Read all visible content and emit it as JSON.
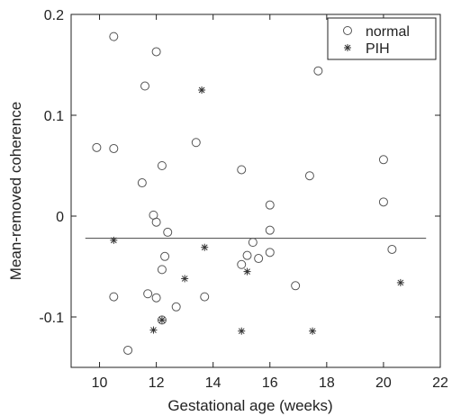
{
  "chart_data": {
    "type": "scatter",
    "title": "",
    "xlabel": "Gestational age (weeks)",
    "ylabel": "Mean-removed coherence",
    "xlim": [
      9,
      22
    ],
    "ylim": [
      -0.15,
      0.2
    ],
    "xticks": [
      10,
      12,
      14,
      16,
      18,
      20,
      22
    ],
    "yticks": [
      -0.1,
      0,
      0.1,
      0.2
    ],
    "xtick_labels": [
      "10",
      "12",
      "14",
      "16",
      "18",
      "20",
      "22"
    ],
    "ytick_labels": [
      "-0.1",
      "0",
      "0.1",
      "0.2"
    ],
    "grid": false,
    "legend_position": "top-right",
    "series": [
      {
        "name": "normal",
        "marker": "circle",
        "points": [
          {
            "x": 10.5,
            "y": 0.178
          },
          {
            "x": 12.0,
            "y": 0.163
          },
          {
            "x": 11.6,
            "y": 0.129
          },
          {
            "x": 17.7,
            "y": 0.144
          },
          {
            "x": 9.9,
            "y": 0.068
          },
          {
            "x": 10.5,
            "y": 0.067
          },
          {
            "x": 13.4,
            "y": 0.073
          },
          {
            "x": 12.2,
            "y": 0.05
          },
          {
            "x": 15.0,
            "y": 0.046
          },
          {
            "x": 20.0,
            "y": 0.056
          },
          {
            "x": 11.5,
            "y": 0.033
          },
          {
            "x": 17.4,
            "y": 0.04
          },
          {
            "x": 20.0,
            "y": 0.014
          },
          {
            "x": 16.0,
            "y": 0.011
          },
          {
            "x": 11.9,
            "y": 0.001
          },
          {
            "x": 12.0,
            "y": -0.006
          },
          {
            "x": 12.4,
            "y": -0.016
          },
          {
            "x": 16.0,
            "y": -0.014
          },
          {
            "x": 15.4,
            "y": -0.026
          },
          {
            "x": 20.3,
            "y": -0.033
          },
          {
            "x": 16.0,
            "y": -0.036
          },
          {
            "x": 15.2,
            "y": -0.039
          },
          {
            "x": 15.6,
            "y": -0.042
          },
          {
            "x": 12.3,
            "y": -0.04
          },
          {
            "x": 15.0,
            "y": -0.048
          },
          {
            "x": 12.2,
            "y": -0.053
          },
          {
            "x": 16.9,
            "y": -0.069
          },
          {
            "x": 10.5,
            "y": -0.08
          },
          {
            "x": 11.7,
            "y": -0.077
          },
          {
            "x": 12.0,
            "y": -0.081
          },
          {
            "x": 13.7,
            "y": -0.08
          },
          {
            "x": 12.7,
            "y": -0.09
          },
          {
            "x": 12.2,
            "y": -0.103
          },
          {
            "x": 11.0,
            "y": -0.133
          }
        ]
      },
      {
        "name": "PIH",
        "marker": "star",
        "points": [
          {
            "x": 13.6,
            "y": 0.125
          },
          {
            "x": 10.5,
            "y": -0.024
          },
          {
            "x": 13.7,
            "y": -0.031
          },
          {
            "x": 15.2,
            "y": -0.055
          },
          {
            "x": 13.0,
            "y": -0.062
          },
          {
            "x": 20.6,
            "y": -0.066
          },
          {
            "x": 12.2,
            "y": -0.103
          },
          {
            "x": 11.9,
            "y": -0.113
          },
          {
            "x": 15.0,
            "y": -0.114
          },
          {
            "x": 17.5,
            "y": -0.114
          }
        ]
      }
    ],
    "reference_line": {
      "y": -0.022,
      "x_start": 9.5,
      "x_end": 21.5
    }
  }
}
